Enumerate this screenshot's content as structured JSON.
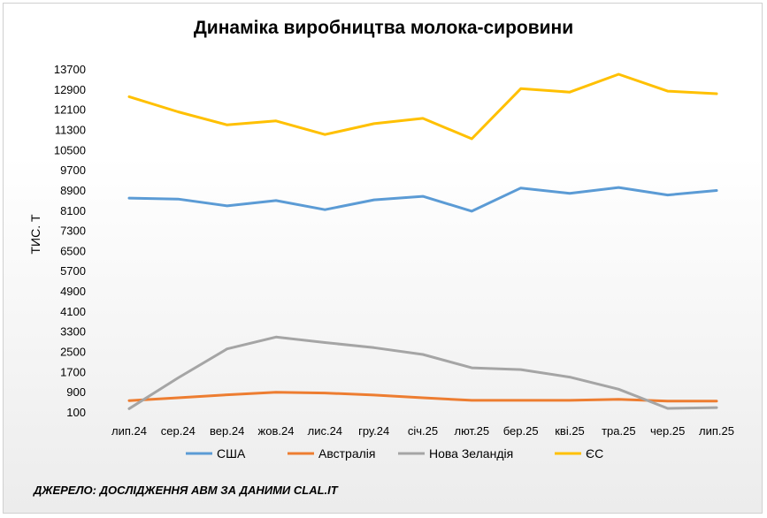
{
  "source": "ДЖЕРЕЛО: ДОСЛІДЖЕННЯ АВМ ЗА ДАНИМИ CLAL.IT",
  "chart_data": {
    "type": "line",
    "title": "Динаміка виробництва молока-сировини",
    "xlabel": "",
    "ylabel": "ТИС. Т",
    "ylim": [
      100,
      13700
    ],
    "yticks": [
      100,
      900,
      1700,
      2500,
      3300,
      4100,
      4900,
      5700,
      6500,
      7300,
      8100,
      8900,
      9700,
      10500,
      11300,
      12100,
      12900,
      13700
    ],
    "categories": [
      "лип.24",
      "сер.24",
      "вер.24",
      "жов.24",
      "лис.24",
      "гру.24",
      "січ.25",
      "лют.25",
      "бер.25",
      "кві.25",
      "тра.25",
      "чер.25",
      "лип.25"
    ],
    "grid": false,
    "legend": "bottom",
    "series": [
      {
        "name": "США",
        "color": "#5b9bd5",
        "values": [
          8580,
          8540,
          8270,
          8480,
          8120,
          8510,
          8650,
          8060,
          8980,
          8770,
          9000,
          8700,
          8880
        ]
      },
      {
        "name": "Австралія",
        "color": "#ed7d31",
        "values": [
          550,
          660,
          780,
          880,
          850,
          770,
          660,
          560,
          560,
          560,
          600,
          530,
          530
        ]
      },
      {
        "name": "Нова Зеландія",
        "color": "#a5a5a5",
        "values": [
          230,
          1450,
          2600,
          3070,
          2850,
          2650,
          2380,
          1850,
          1780,
          1480,
          1000,
          240,
          270
        ]
      },
      {
        "name": "ЄС",
        "color": "#ffc000",
        "values": [
          12600,
          12000,
          11480,
          11640,
          11100,
          11530,
          11740,
          10930,
          12920,
          12780,
          13490,
          12820,
          12720
        ]
      }
    ]
  }
}
